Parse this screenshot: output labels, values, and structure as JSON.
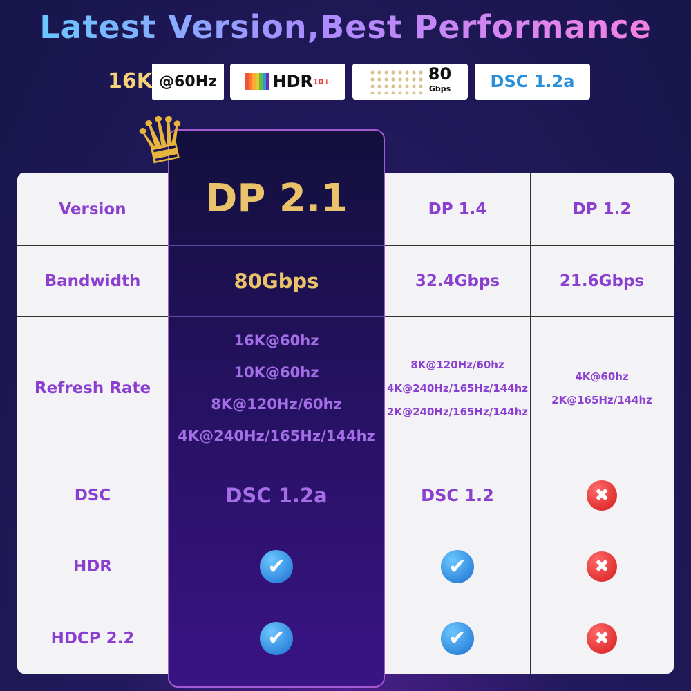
{
  "title": "Latest Version,Best Performance",
  "badges": {
    "res": "16K",
    "hz": "@60Hz",
    "hdr": "HDR",
    "hdr_sup": "10+",
    "bw_num": "80",
    "bw_unit": "Gbps",
    "dsc": "DSC 1.2a"
  },
  "columns": [
    "Version",
    "DP 2.1",
    "DP 1.4",
    "DP 1.2"
  ],
  "rows": [
    {
      "label": "Bandwidth",
      "dp21": [
        "80Gbps"
      ],
      "dp14": [
        "32.4Gbps"
      ],
      "dp12": [
        "21.6Gbps"
      ]
    },
    {
      "label": "Refresh Rate",
      "dp21": [
        "16K@60hz",
        "10K@60hz",
        "8K@120Hz/60hz",
        "4K@240Hz/165Hz/144hz"
      ],
      "dp14": [
        "8K@120Hz/60hz",
        "4K@240Hz/165Hz/144hz",
        "2K@240Hz/165Hz/144hz"
      ],
      "dp12": [
        "4K@60hz",
        "2K@165Hz/144hz"
      ]
    },
    {
      "label": "DSC",
      "dp21": [
        "DSC 1.2a"
      ],
      "dp14": [
        "DSC 1.2"
      ],
      "dp12": "cross"
    },
    {
      "label": "HDR",
      "dp21": "check",
      "dp14": "check",
      "dp12": "cross"
    },
    {
      "label": "HDCP 2.2",
      "dp21": "check",
      "dp14": "check",
      "dp12": "cross"
    }
  ],
  "icons": {
    "check": "check-circle-icon",
    "cross": "x-circle-icon",
    "crown": "crown-icon"
  }
}
